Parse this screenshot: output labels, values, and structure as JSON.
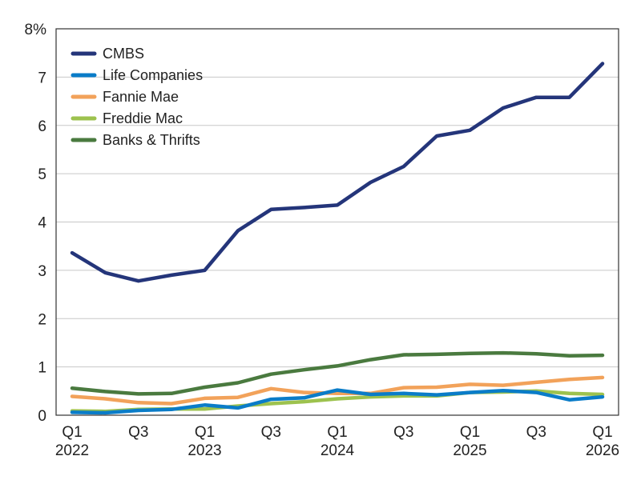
{
  "chart_data": {
    "type": "line",
    "title": "",
    "xlabel": "",
    "ylabel": "",
    "ylim": [
      0,
      8
    ],
    "yticks": [
      {
        "value": 0,
        "label": "0"
      },
      {
        "value": 1,
        "label": "1"
      },
      {
        "value": 2,
        "label": "2"
      },
      {
        "value": 3,
        "label": "3"
      },
      {
        "value": 4,
        "label": "4"
      },
      {
        "value": 5,
        "label": "5"
      },
      {
        "value": 6,
        "label": "6"
      },
      {
        "value": 7,
        "label": "7"
      },
      {
        "value": 8,
        "label": "8%"
      }
    ],
    "grid": true,
    "legend_position": "top-left",
    "categories": [
      "2022 Q1",
      "2022 Q2",
      "2022 Q3",
      "2022 Q4",
      "2023 Q1",
      "2023 Q2",
      "2023 Q3",
      "2023 Q4",
      "2024 Q1",
      "2024 Q2",
      "2024 Q3",
      "2024 Q4",
      "2025 Q1",
      "2025 Q2",
      "2025 Q3",
      "2025 Q4",
      "2026 Q1"
    ],
    "xticks": [
      {
        "index": 0,
        "line1": "Q1",
        "line2": "2022"
      },
      {
        "index": 2,
        "line1": "Q3",
        "line2": ""
      },
      {
        "index": 4,
        "line1": "Q1",
        "line2": "2023"
      },
      {
        "index": 6,
        "line1": "Q3",
        "line2": ""
      },
      {
        "index": 8,
        "line1": "Q1",
        "line2": "2024"
      },
      {
        "index": 10,
        "line1": "Q3",
        "line2": ""
      },
      {
        "index": 12,
        "line1": "Q1",
        "line2": "2025"
      },
      {
        "index": 14,
        "line1": "Q3",
        "line2": ""
      },
      {
        "index": 16,
        "line1": "Q1",
        "line2": "2026"
      }
    ],
    "series": [
      {
        "name": "CMBS",
        "color": "#24357a",
        "values": [
          3.36,
          2.95,
          2.78,
          2.9,
          3.0,
          3.82,
          4.26,
          4.3,
          4.35,
          4.82,
          5.15,
          5.78,
          5.9,
          6.36,
          6.58,
          6.58,
          7.28
        ]
      },
      {
        "name": "Life Companies",
        "color": "#0a7cc8",
        "values": [
          0.06,
          0.05,
          0.1,
          0.12,
          0.21,
          0.15,
          0.33,
          0.36,
          0.52,
          0.43,
          0.45,
          0.42,
          0.47,
          0.51,
          0.47,
          0.32,
          0.38
        ]
      },
      {
        "name": "Fannie Mae",
        "color": "#f2a25a",
        "values": [
          0.39,
          0.34,
          0.26,
          0.24,
          0.35,
          0.37,
          0.55,
          0.47,
          0.45,
          0.45,
          0.57,
          0.58,
          0.64,
          0.62,
          0.68,
          0.74,
          0.78
        ]
      },
      {
        "name": "Freddie Mac",
        "color": "#9dc24e",
        "values": [
          0.09,
          0.08,
          0.12,
          0.13,
          0.13,
          0.19,
          0.24,
          0.28,
          0.34,
          0.38,
          0.4,
          0.4,
          0.47,
          0.48,
          0.5,
          0.45,
          0.43
        ]
      },
      {
        "name": "Banks & Thrifts",
        "color": "#4a7a3f",
        "values": [
          0.56,
          0.49,
          0.44,
          0.45,
          0.58,
          0.67,
          0.85,
          0.94,
          1.02,
          1.15,
          1.25,
          1.26,
          1.28,
          1.29,
          1.27,
          1.23,
          1.24
        ]
      }
    ]
  }
}
